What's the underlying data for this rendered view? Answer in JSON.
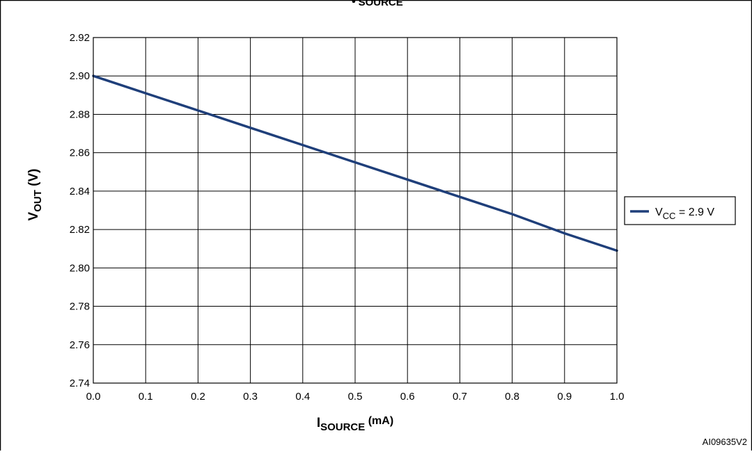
{
  "figure": {
    "title_cut": "V",
    "title_cut_sub": "SOURCE",
    "ref_code": "AI09635V2"
  },
  "chart_data": {
    "type": "line",
    "x_axis": {
      "label_main": "I",
      "label_sub": "SOURCE",
      "label_unit": " (mA)",
      "range": [
        0.0,
        1.0
      ],
      "ticks": [
        0.0,
        0.1,
        0.2,
        0.3,
        0.4,
        0.5,
        0.6,
        0.7,
        0.8,
        0.9,
        1.0
      ],
      "tick_labels": [
        "0.0",
        "0.1",
        "0.2",
        "0.3",
        "0.4",
        "0.5",
        "0.6",
        "0.7",
        "0.8",
        "0.9",
        "1.0"
      ]
    },
    "y_axis": {
      "label_main": "V",
      "label_sub": "OUT",
      "label_unit": " (V)",
      "range": [
        2.74,
        2.92
      ],
      "ticks": [
        2.74,
        2.76,
        2.78,
        2.8,
        2.82,
        2.84,
        2.86,
        2.88,
        2.9,
        2.92
      ],
      "tick_labels": [
        "2.74",
        "2.76",
        "2.78",
        "2.80",
        "2.82",
        "2.84",
        "2.86",
        "2.88",
        "2.90",
        "2.92"
      ]
    },
    "grid": true,
    "legend_position": "right",
    "series": [
      {
        "legend_main": "V",
        "legend_sub": "CC",
        "legend_rest": " = 2.9 V",
        "color": "#1f3f7a",
        "x": [
          0.0,
          0.1,
          0.2,
          0.3,
          0.4,
          0.5,
          0.6,
          0.7,
          0.8,
          0.9,
          1.0
        ],
        "y": [
          2.9,
          2.891,
          2.882,
          2.873,
          2.864,
          2.855,
          2.846,
          2.837,
          2.828,
          2.818,
          2.809
        ]
      }
    ]
  }
}
